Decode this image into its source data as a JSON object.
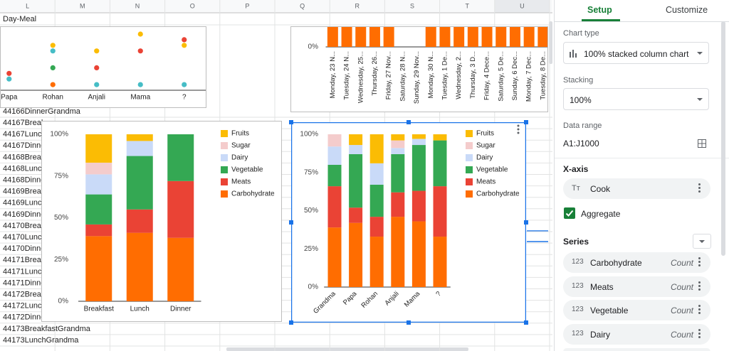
{
  "sheet": {
    "columns": [
      "L",
      "M",
      "N",
      "O",
      "P",
      "Q",
      "R",
      "S",
      "T",
      "U"
    ],
    "first_cell": "Day-Meal",
    "rows": [
      "44166DinnerGrandma",
      "44167Break",
      "44167Lunch",
      "44167Dinne",
      "44168Break",
      "44168Lunch",
      "44168Dinne",
      "44169Break",
      "44169Lunch",
      "44169Dinne",
      "44170Break",
      "44170Lunch",
      "44170Dinne",
      "44171Break",
      "44171Lunch",
      "44171Dinne",
      "44172Break",
      "44172Lunch",
      "44172Dinne",
      "44173BreakfastGrandma",
      "44173LunchGrandma"
    ]
  },
  "chart_data": [
    {
      "type": "scatter",
      "categories": [
        "Papa",
        "Rohan",
        "Anjali",
        "Mama",
        "?"
      ],
      "ylim": [
        0,
        10
      ],
      "series": [
        {
          "color": "#fbbc04",
          "values": [
            null,
            8,
            7,
            10,
            8
          ]
        },
        {
          "color": "#46bdc6",
          "values": [
            2,
            7,
            1,
            1,
            1
          ]
        },
        {
          "color": "#34a853",
          "values": [
            null,
            4,
            null,
            null,
            null
          ]
        },
        {
          "color": "#ea4335",
          "values": [
            3,
            null,
            4,
            7,
            9
          ]
        },
        {
          "color": "#ff6d01",
          "values": [
            null,
            1,
            null,
            null,
            null
          ]
        }
      ]
    },
    {
      "type": "bar",
      "categories": [
        "Monday, 23 N...",
        "Tuesday, 24 N...",
        "Wednesday, 25...",
        "Thursday, 26...",
        "Friday, 27 Nov...",
        "Saturday, 28 N...",
        "Sunday, 29 Nov...",
        "Monday, 30 N...",
        "Tuesday, 1 De...",
        "Wednesday, 2...",
        "Thursday, 3 D...",
        "Friday, 4 Dece...",
        "Saturday, 5 De...",
        "Sunday, 6 Dec...",
        "Monday, 7 Dec...",
        "Tuesday, 8 De..."
      ],
      "values": [
        100,
        100,
        100,
        100,
        100,
        0,
        0,
        100,
        100,
        100,
        100,
        100,
        100,
        100,
        100,
        100
      ],
      "color": "#ff6d01",
      "ylim": [
        0,
        100
      ],
      "yticks": [
        {
          "value": 0,
          "label": "0%"
        }
      ]
    },
    {
      "type": "stacked_bar",
      "categories": [
        "Breakfast",
        "Lunch",
        "Dinner"
      ],
      "ylim": [
        0,
        100
      ],
      "yticks": [
        {
          "value": 0,
          "label": "0%"
        },
        {
          "value": 25,
          "label": "25%"
        },
        {
          "value": 50,
          "label": "50%"
        },
        {
          "value": 75,
          "label": "75%"
        },
        {
          "value": 100,
          "label": "100%"
        }
      ],
      "series": [
        {
          "name": "Carbohydrate",
          "color": "#ff6d01",
          "values": [
            39,
            41,
            38
          ]
        },
        {
          "name": "Meats",
          "color": "#ea4335",
          "values": [
            7,
            14,
            34
          ]
        },
        {
          "name": "Vegetable",
          "color": "#34a853",
          "values": [
            18,
            32,
            28
          ]
        },
        {
          "name": "Dairy",
          "color": "#c9daf8",
          "values": [
            12,
            9,
            0
          ]
        },
        {
          "name": "Sugar",
          "color": "#f4cccc",
          "values": [
            7,
            0,
            0
          ]
        },
        {
          "name": "Fruits",
          "color": "#fbbc04",
          "values": [
            17,
            4,
            0
          ]
        }
      ]
    },
    {
      "type": "stacked_bar",
      "categories": [
        "Grandma",
        "Papa",
        "Rohan",
        "Anjali",
        "Mama",
        "?"
      ],
      "ylim": [
        0,
        100
      ],
      "yticks": [
        {
          "value": 0,
          "label": "0%"
        },
        {
          "value": 25,
          "label": "25%"
        },
        {
          "value": 50,
          "label": "50%"
        },
        {
          "value": 75,
          "label": "75%"
        },
        {
          "value": 100,
          "label": "100%"
        }
      ],
      "series": [
        {
          "name": "Carbohydrate",
          "color": "#ff6d01",
          "values": [
            39,
            42,
            33,
            46,
            43,
            33
          ]
        },
        {
          "name": "Meats",
          "color": "#ea4335",
          "values": [
            27,
            10,
            13,
            16,
            20,
            33
          ]
        },
        {
          "name": "Vegetable",
          "color": "#34a853",
          "values": [
            14,
            35,
            21,
            25,
            30,
            30
          ]
        },
        {
          "name": "Dairy",
          "color": "#c9daf8",
          "values": [
            12,
            6,
            14,
            4,
            4,
            0
          ]
        },
        {
          "name": "Sugar",
          "color": "#f4cccc",
          "values": [
            8,
            0,
            0,
            5,
            0,
            0
          ]
        },
        {
          "name": "Fruits",
          "color": "#fbbc04",
          "values": [
            0,
            7,
            19,
            4,
            3,
            4
          ]
        }
      ]
    }
  ],
  "sidebar": {
    "tabs": [
      "Setup",
      "Customize"
    ],
    "chart_type_label": "Chart type",
    "chart_type": "100% stacked column chart",
    "stacking_label": "Stacking",
    "stacking": "100%",
    "data_range_label": "Data range",
    "data_range": "A1:J1000",
    "x_axis_label": "X-axis",
    "x_axis_icon": "Tт",
    "x_axis": "Cook",
    "aggregate_label": "Aggregate",
    "aggregate_checked": true,
    "series_label": "Series",
    "series": [
      {
        "icon": "123",
        "name": "Carbohydrate",
        "aggregate": "Count"
      },
      {
        "icon": "123",
        "name": "Meats",
        "aggregate": "Count"
      },
      {
        "icon": "123",
        "name": "Vegetable",
        "aggregate": "Count"
      },
      {
        "icon": "123",
        "name": "Dairy",
        "aggregate": "Count"
      }
    ]
  }
}
